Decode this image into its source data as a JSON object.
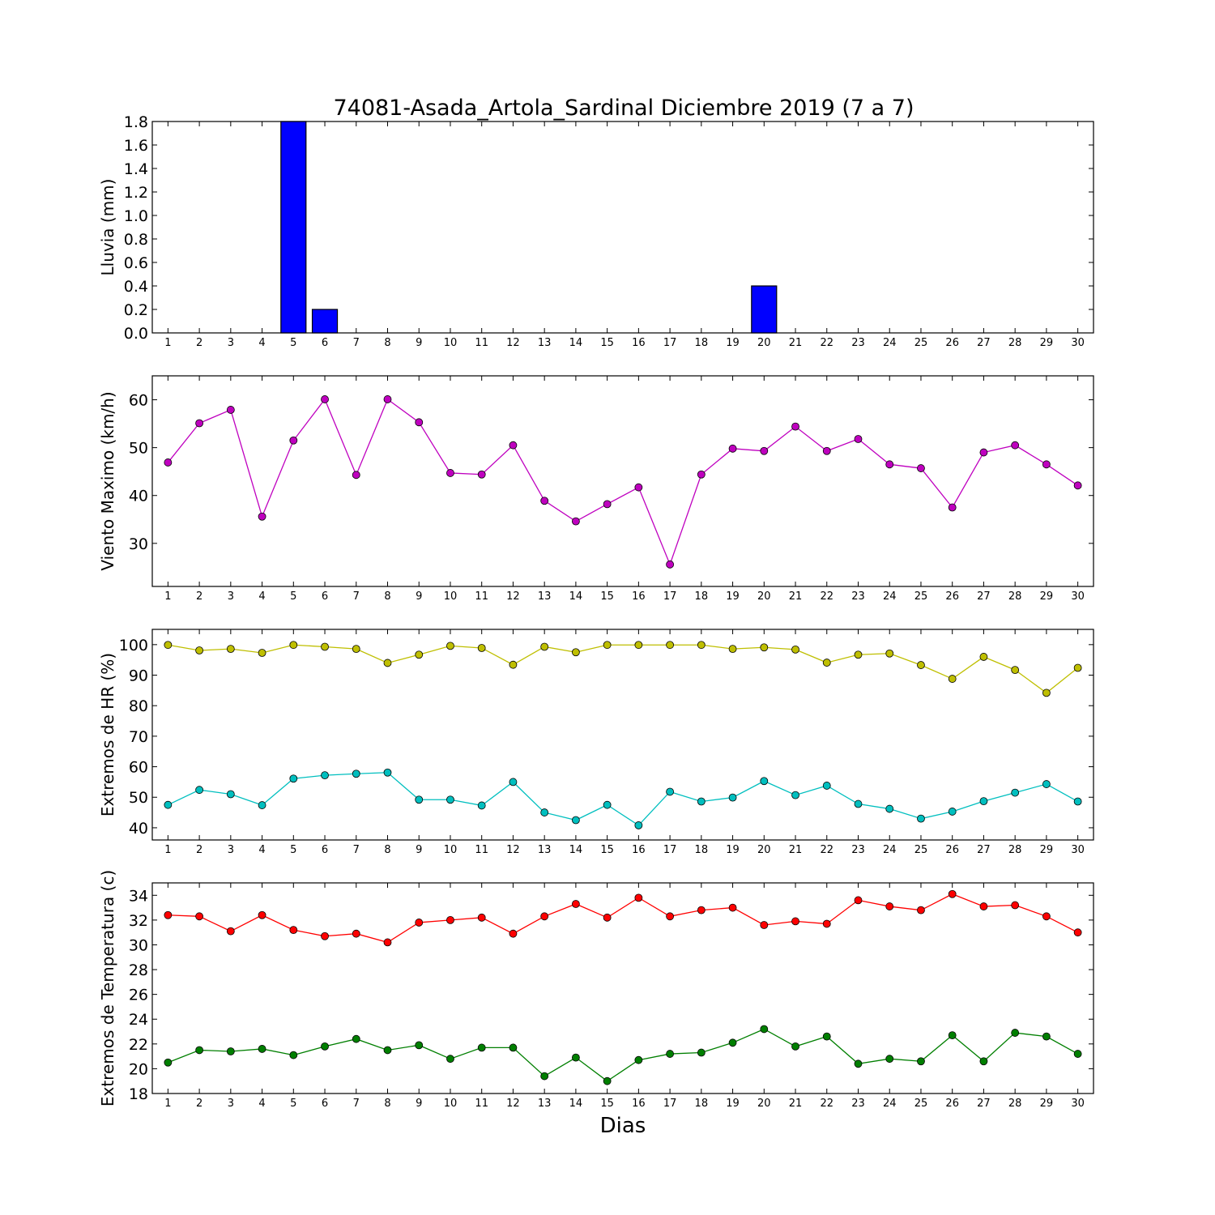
{
  "chart_data": [
    {
      "type": "bar",
      "title": "74081-Asada_Artola_Sardinal Diciembre 2019  (7 a 7)",
      "ylabel": "Lluvia (mm)",
      "xlabel": "",
      "x": [
        1,
        2,
        3,
        4,
        5,
        6,
        7,
        8,
        9,
        10,
        11,
        12,
        13,
        14,
        15,
        16,
        17,
        18,
        19,
        20,
        21,
        22,
        23,
        24,
        25,
        26,
        27,
        28,
        29,
        30
      ],
      "ylim": [
        0,
        1.8
      ],
      "yticks": [
        "0.0",
        "0.2",
        "0.4",
        "0.6",
        "0.8",
        "1.0",
        "1.2",
        "1.4",
        "1.6",
        "1.8"
      ],
      "series": [
        {
          "color": "#0000ff",
          "values": [
            0,
            0,
            0,
            0,
            1.8,
            0.2,
            0,
            0,
            0,
            0,
            0,
            0,
            0,
            0,
            0,
            0,
            0,
            0,
            0,
            0.4,
            0,
            0,
            0,
            0,
            0,
            0,
            0,
            0,
            0,
            0
          ]
        }
      ]
    },
    {
      "type": "line",
      "ylabel": "Viento Maximo (km/h)",
      "xlabel": "",
      "x": [
        1,
        2,
        3,
        4,
        5,
        6,
        7,
        8,
        9,
        10,
        11,
        12,
        13,
        14,
        15,
        16,
        17,
        18,
        19,
        20,
        21,
        22,
        23,
        24,
        25,
        26,
        27,
        28,
        29,
        30
      ],
      "ylim": [
        21,
        65
      ],
      "yticks": [
        "30",
        "40",
        "50",
        "60"
      ],
      "series": [
        {
          "color": "#bf00bf",
          "values": [
            46.9,
            55.1,
            57.9,
            35.6,
            51.5,
            60.1,
            44.3,
            60.1,
            55.3,
            44.7,
            44.4,
            50.5,
            38.9,
            34.6,
            38.2,
            41.7,
            25.6,
            44.4,
            49.8,
            49.3,
            54.4,
            49.3,
            51.8,
            46.5,
            45.7,
            37.5,
            49.0,
            50.5,
            46.5,
            42.1
          ]
        }
      ]
    },
    {
      "type": "line",
      "ylabel": "Extremos de HR (%)",
      "xlabel": "",
      "x": [
        1,
        2,
        3,
        4,
        5,
        6,
        7,
        8,
        9,
        10,
        11,
        12,
        13,
        14,
        15,
        16,
        17,
        18,
        19,
        20,
        21,
        22,
        23,
        24,
        25,
        26,
        27,
        28,
        29,
        30
      ],
      "ylim": [
        36,
        105
      ],
      "yticks": [
        "40",
        "50",
        "60",
        "70",
        "80",
        "90",
        "100"
      ],
      "series": [
        {
          "color": "#bfbf00",
          "values": [
            99.9,
            98.1,
            98.6,
            97.3,
            99.9,
            99.3,
            98.6,
            94.0,
            96.7,
            99.6,
            98.9,
            93.4,
            99.3,
            97.5,
            99.9,
            99.9,
            99.9,
            99.9,
            98.6,
            99.1,
            98.4,
            94.1,
            96.7,
            97.1,
            93.3,
            88.8,
            96.0,
            91.7,
            84.2,
            92.4
          ]
        },
        {
          "color": "#00bfbf",
          "values": [
            47.5,
            52.4,
            51.0,
            47.4,
            56.1,
            57.2,
            57.7,
            58.1,
            49.2,
            49.2,
            47.3,
            55.0,
            45.0,
            42.5,
            47.5,
            40.8,
            51.8,
            48.6,
            49.9,
            55.3,
            50.7,
            53.8,
            47.8,
            46.2,
            43.0,
            45.3,
            48.7,
            51.5,
            54.3,
            48.6
          ]
        }
      ]
    },
    {
      "type": "line",
      "ylabel": "Extremos de Temperatura (c)",
      "xlabel": "Dias",
      "x": [
        1,
        2,
        3,
        4,
        5,
        6,
        7,
        8,
        9,
        10,
        11,
        12,
        13,
        14,
        15,
        16,
        17,
        18,
        19,
        20,
        21,
        22,
        23,
        24,
        25,
        26,
        27,
        28,
        29,
        30
      ],
      "ylim": [
        18,
        35
      ],
      "yticks": [
        "18",
        "20",
        "22",
        "24",
        "26",
        "28",
        "30",
        "32",
        "34"
      ],
      "series": [
        {
          "color": "#ff0000",
          "values": [
            32.4,
            32.3,
            31.1,
            32.4,
            31.2,
            30.7,
            30.9,
            30.2,
            31.8,
            32.0,
            32.2,
            30.9,
            32.3,
            33.3,
            32.2,
            33.8,
            32.3,
            32.8,
            33.0,
            31.6,
            31.9,
            31.7,
            33.6,
            33.1,
            32.8,
            34.1,
            33.1,
            33.2,
            32.3,
            31.0
          ]
        },
        {
          "color": "#007f00",
          "values": [
            20.5,
            21.5,
            21.4,
            21.6,
            21.1,
            21.8,
            22.4,
            21.5,
            21.9,
            20.8,
            21.7,
            21.7,
            19.4,
            20.9,
            19.0,
            20.7,
            21.2,
            21.3,
            22.1,
            23.2,
            21.8,
            22.6,
            20.4,
            20.8,
            20.6,
            22.7,
            20.6,
            22.9,
            22.6,
            21.2
          ]
        }
      ]
    }
  ]
}
